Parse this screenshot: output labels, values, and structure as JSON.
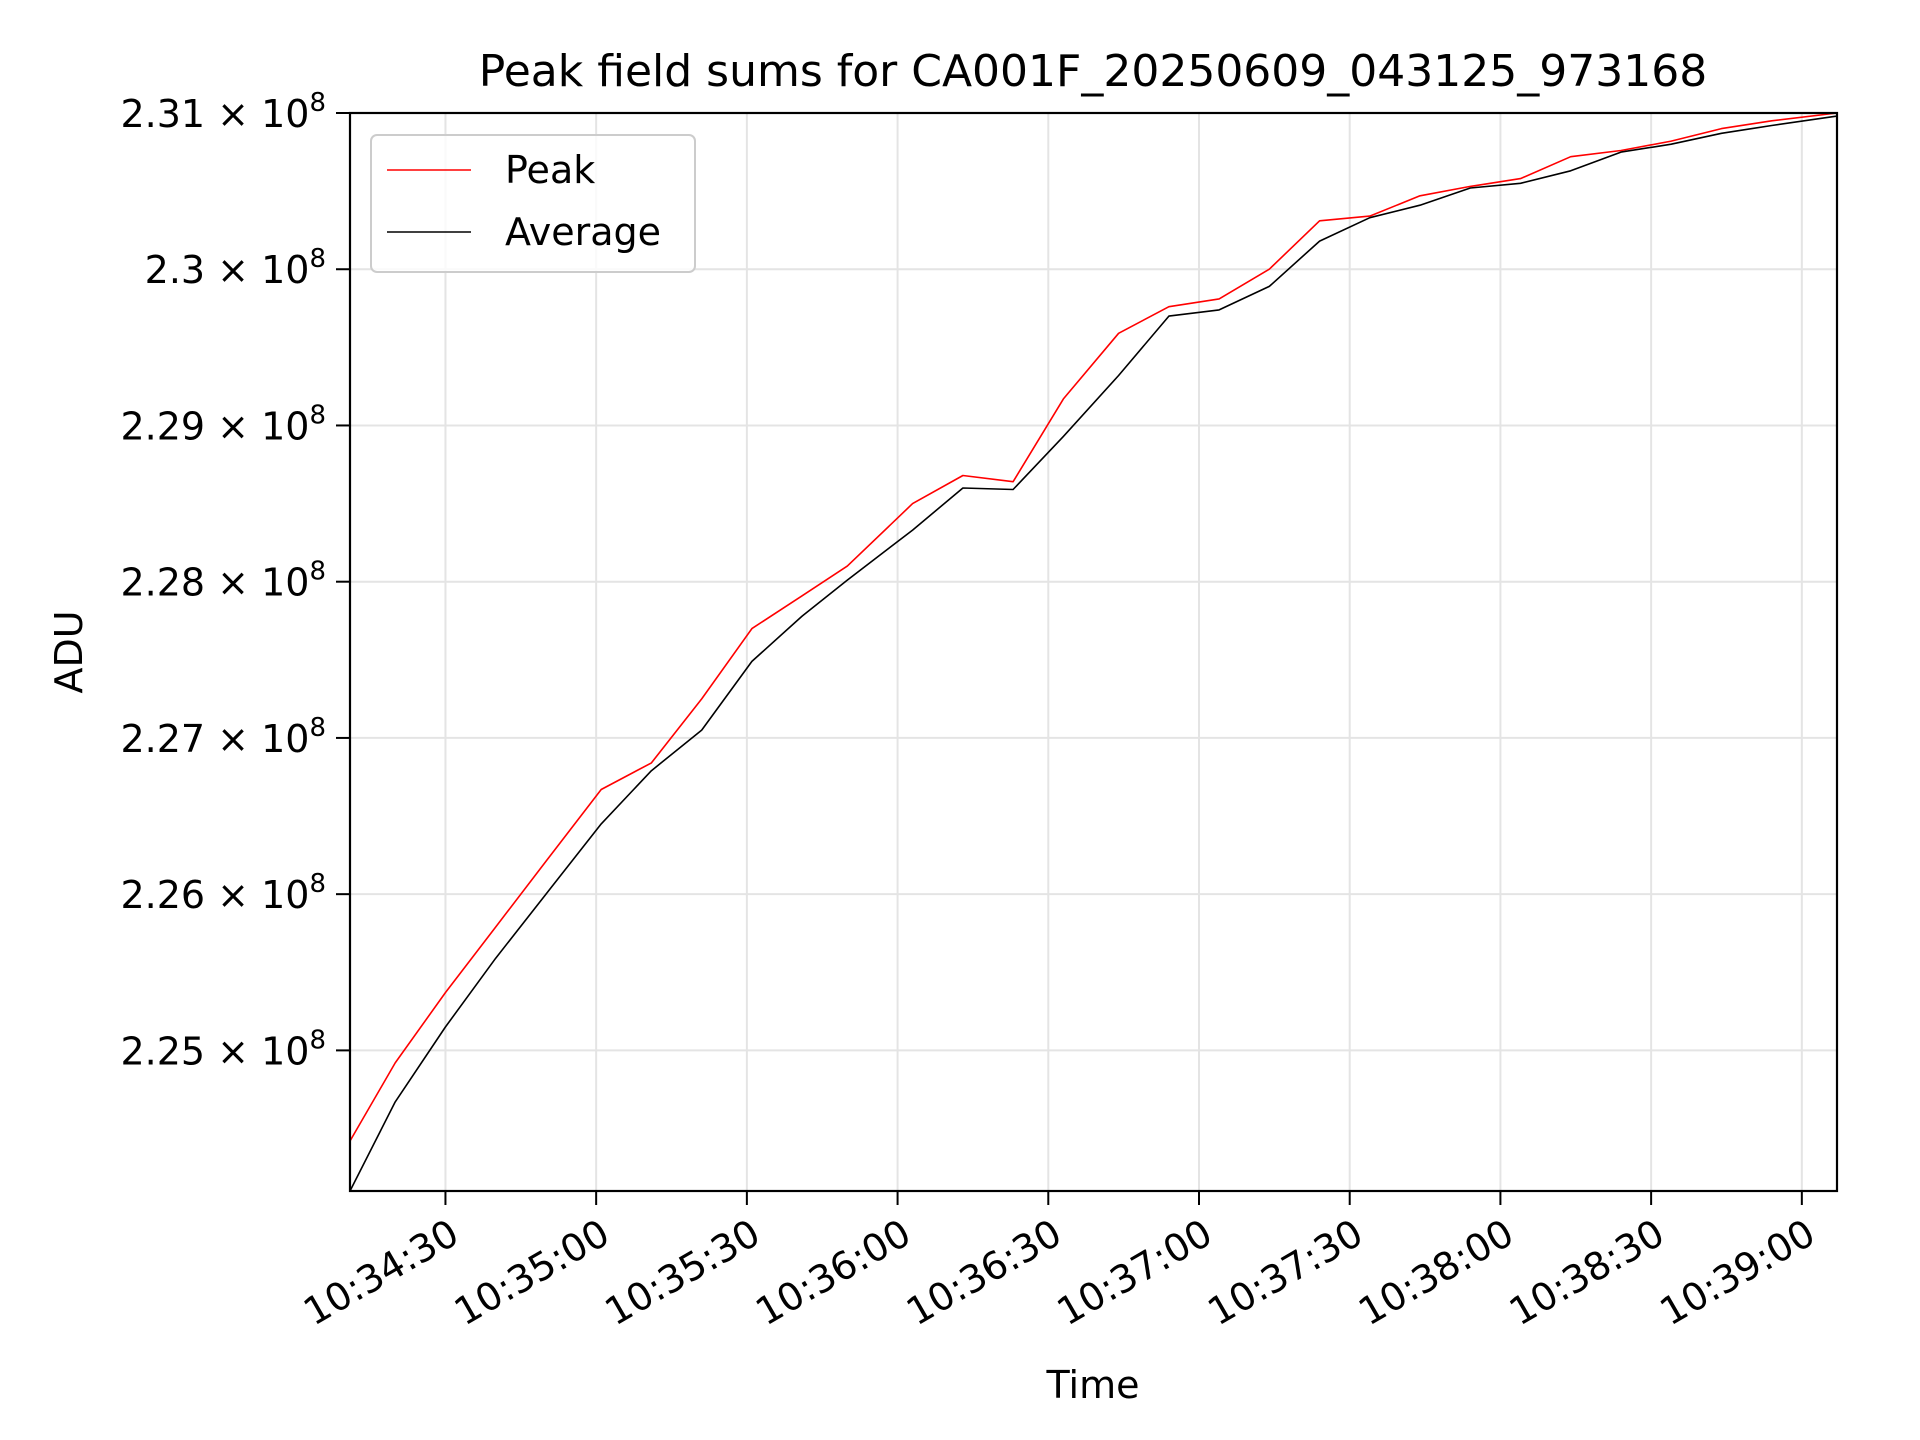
{
  "chart_data": {
    "type": "line",
    "title": "Peak field sums for CA001F_20250609_043125_973168",
    "xlabel": "Time",
    "ylabel": "ADU",
    "xlim": [
      "10:34:11",
      "10:39:07"
    ],
    "ylim": [
      224100000,
      231000000
    ],
    "x_ticks": [
      "10:34:30",
      "10:35:00",
      "10:35:30",
      "10:36:00",
      "10:36:30",
      "10:37:00",
      "10:37:30",
      "10:38:00",
      "10:38:30",
      "10:39:00"
    ],
    "y_ticks": [
      {
        "value": 225000000,
        "mantissa": "2.25",
        "exp": "8"
      },
      {
        "value": 226000000,
        "mantissa": "2.26",
        "exp": "8"
      },
      {
        "value": 227000000,
        "mantissa": "2.27",
        "exp": "8"
      },
      {
        "value": 228000000,
        "mantissa": "2.28",
        "exp": "8"
      },
      {
        "value": 229000000,
        "mantissa": "2.29",
        "exp": "8"
      },
      {
        "value": 230000000,
        "mantissa": "2.3",
        "exp": "8"
      },
      {
        "value": 231000000,
        "mantissa": "2.31",
        "exp": "8"
      }
    ],
    "grid": true,
    "legend_position": "top-left",
    "x": [
      "10:34:11",
      "10:34:20",
      "10:34:30",
      "10:34:40",
      "10:34:50",
      "10:35:01",
      "10:35:11",
      "10:35:21",
      "10:35:31",
      "10:35:41",
      "10:35:50",
      "10:36:03",
      "10:36:13",
      "10:36:23",
      "10:36:33",
      "10:36:44",
      "10:36:54",
      "10:37:04",
      "10:37:14",
      "10:37:24",
      "10:37:34",
      "10:37:44",
      "10:37:54",
      "10:38:04",
      "10:38:14",
      "10:38:24",
      "10:38:34",
      "10:38:44",
      "10:38:54",
      "10:39:07"
    ],
    "series": [
      {
        "name": "Peak",
        "color": "#ff0000",
        "values": [
          224420000,
          224920000,
          225370000,
          225790000,
          226210000,
          226670000,
          226840000,
          227250000,
          227700000,
          227910000,
          228100000,
          228500000,
          228680000,
          228640000,
          229170000,
          229590000,
          229760000,
          229810000,
          230000000,
          230310000,
          230340000,
          230470000,
          230530000,
          230580000,
          230720000,
          230760000,
          230820000,
          230900000,
          230950000,
          231000000
        ]
      },
      {
        "name": "Average",
        "color": "#000000",
        "values": [
          224100000,
          224670000,
          225150000,
          225590000,
          226000000,
          226450000,
          226790000,
          227050000,
          227490000,
          227780000,
          228010000,
          228330000,
          228600000,
          228590000,
          228930000,
          229320000,
          229700000,
          229740000,
          229890000,
          230180000,
          230330000,
          230410000,
          230520000,
          230550000,
          230630000,
          230750000,
          230800000,
          230870000,
          230920000,
          230980000
        ]
      }
    ]
  }
}
